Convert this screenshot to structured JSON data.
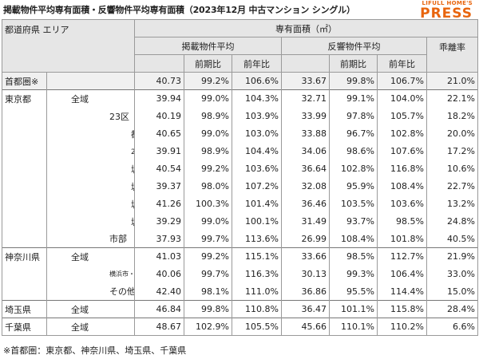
{
  "title": "掲載物件平均専有面積・反響物件平均専有面積（2023年12月 中古マンション シングル）",
  "logo": {
    "top": "LIFULL HOME'S",
    "main": "PRESS"
  },
  "header": {
    "region": "都道府県 エリア",
    "area": "専有面積（㎡）",
    "listed": "掲載物件平均",
    "response": "反響物件平均",
    "gap": "乖離率",
    "mom": "前期比",
    "yoy": "前年比"
  },
  "rows": [
    {
      "pref": "首都圏※",
      "area": "",
      "listed": "40.73",
      "listed_mom": "99.2%",
      "listed_yoy": "106.6%",
      "resp": "33.67",
      "resp_mom": "99.8%",
      "resp_yoy": "106.7%",
      "gap": "21.0%"
    },
    {
      "pref": "東京都",
      "area": "全域",
      "listed": "39.94",
      "listed_mom": "99.0%",
      "listed_yoy": "104.3%",
      "resp": "32.71",
      "resp_mom": "99.1%",
      "resp_yoy": "104.0%",
      "gap": "22.1%"
    },
    {
      "pref": "",
      "area": "23区",
      "listed": "40.19",
      "listed_mom": "98.9%",
      "listed_yoy": "103.9%",
      "resp": "33.99",
      "resp_mom": "97.8%",
      "resp_yoy": "105.7%",
      "gap": "18.2%"
    },
    {
      "pref": "",
      "area": "都心6区",
      "listed": "40.65",
      "listed_mom": "99.0%",
      "listed_yoy": "103.0%",
      "resp": "33.88",
      "resp_mom": "96.7%",
      "resp_yoy": "102.8%",
      "gap": "20.0%"
    },
    {
      "pref": "",
      "area": "23区その他",
      "listed": "39.91",
      "listed_mom": "98.9%",
      "listed_yoy": "104.4%",
      "resp": "34.06",
      "resp_mom": "98.6%",
      "resp_yoy": "107.6%",
      "gap": "17.2%"
    },
    {
      "pref": "",
      "area": "城東",
      "listed": "40.54",
      "listed_mom": "99.2%",
      "listed_yoy": "103.6%",
      "resp": "36.64",
      "resp_mom": "102.8%",
      "resp_yoy": "116.8%",
      "gap": "10.6%"
    },
    {
      "pref": "",
      "area": "城西",
      "listed": "39.37",
      "listed_mom": "98.0%",
      "listed_yoy": "107.2%",
      "resp": "32.08",
      "resp_mom": "95.9%",
      "resp_yoy": "108.4%",
      "gap": "22.7%"
    },
    {
      "pref": "",
      "area": "城南",
      "listed": "41.26",
      "listed_mom": "100.3%",
      "listed_yoy": "101.4%",
      "resp": "36.46",
      "resp_mom": "103.5%",
      "resp_yoy": "103.6%",
      "gap": "13.2%"
    },
    {
      "pref": "",
      "area": "城北",
      "listed": "39.29",
      "listed_mom": "99.0%",
      "listed_yoy": "100.1%",
      "resp": "31.49",
      "resp_mom": "93.7%",
      "resp_yoy": "98.5%",
      "gap": "24.8%"
    },
    {
      "pref": "",
      "area": "市部",
      "listed": "37.93",
      "listed_mom": "99.7%",
      "listed_yoy": "113.6%",
      "resp": "26.99",
      "resp_mom": "108.4%",
      "resp_yoy": "101.8%",
      "gap": "40.5%"
    },
    {
      "pref": "神奈川県",
      "area": "全域",
      "listed": "41.03",
      "listed_mom": "99.2%",
      "listed_yoy": "115.1%",
      "resp": "33.66",
      "resp_mom": "98.5%",
      "resp_yoy": "112.7%",
      "gap": "21.9%"
    },
    {
      "pref": "",
      "area": "横浜市・川崎市",
      "listed": "40.06",
      "listed_mom": "99.7%",
      "listed_yoy": "116.3%",
      "resp": "30.13",
      "resp_mom": "99.3%",
      "resp_yoy": "106.4%",
      "gap": "33.0%"
    },
    {
      "pref": "",
      "area": "その他",
      "listed": "42.40",
      "listed_mom": "98.1%",
      "listed_yoy": "111.0%",
      "resp": "36.86",
      "resp_mom": "95.5%",
      "resp_yoy": "114.4%",
      "gap": "15.0%"
    },
    {
      "pref": "埼玉県",
      "area": "全域",
      "listed": "46.84",
      "listed_mom": "99.8%",
      "listed_yoy": "110.8%",
      "resp": "36.47",
      "resp_mom": "101.1%",
      "resp_yoy": "115.8%",
      "gap": "28.4%"
    },
    {
      "pref": "千葉県",
      "area": "全域",
      "listed": "48.67",
      "listed_mom": "102.9%",
      "listed_yoy": "105.5%",
      "resp": "45.66",
      "resp_mom": "110.1%",
      "resp_yoy": "110.2%",
      "gap": "6.6%"
    }
  ],
  "note": "※首都圏：東京都、神奈川県、埼玉県、千葉県"
}
